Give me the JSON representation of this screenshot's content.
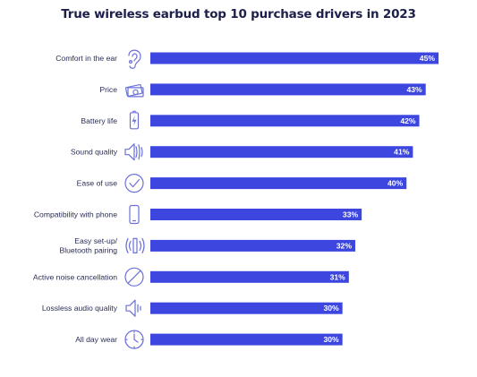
{
  "chart_data": {
    "type": "bar",
    "orientation": "horizontal",
    "title": "True wireless earbud top 10 purchase drivers in 2023",
    "xlabel": "",
    "ylabel": "",
    "xlim": [
      0,
      45
    ],
    "grid": false,
    "legend": "none",
    "bar_color": "#3d47e0",
    "icon_color": "#6a70d8",
    "categories": [
      "Comfort in the ear",
      "Price",
      "Battery life",
      "Sound quality",
      "Ease of use",
      "Compatibility with phone",
      "Easy set-up/\nBluetooth pairing",
      "Active noise cancellation",
      "Lossless audio quality",
      "All day wear"
    ],
    "values": [
      45,
      43,
      42,
      41,
      40,
      33,
      32,
      31,
      30,
      30
    ],
    "value_labels": [
      "45%",
      "43%",
      "42%",
      "41%",
      "40%",
      "33%",
      "32%",
      "31%",
      "30%",
      "30%"
    ],
    "icons": [
      "ear-icon",
      "money-icon",
      "battery-icon",
      "speaker-wave-icon",
      "checkmark-icon",
      "phone-icon",
      "bluetooth-signal-icon",
      "no-sign-icon",
      "speaker-icon",
      "clock-icon"
    ]
  }
}
